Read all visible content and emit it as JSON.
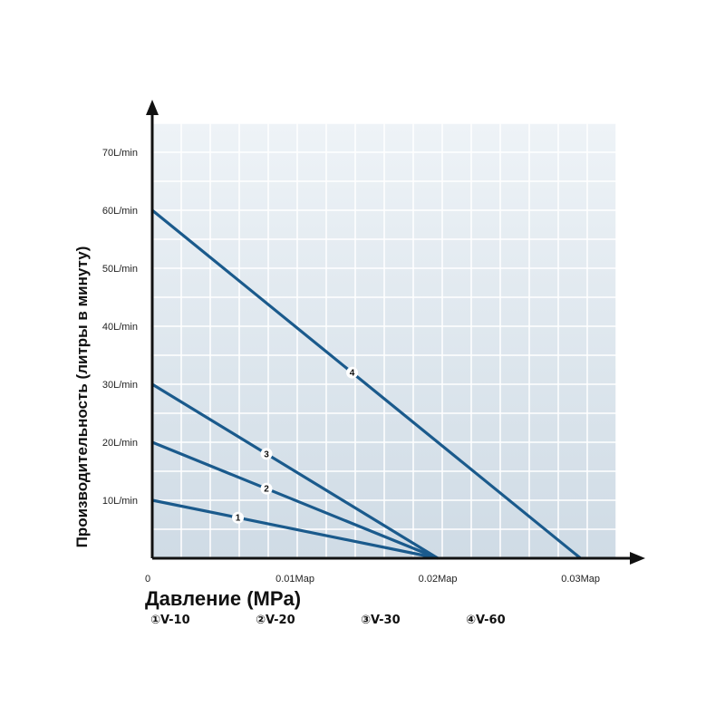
{
  "chart_data": {
    "type": "line",
    "xlabel": "Давление (MPa)",
    "ylabel": "Производительность (литры в минуту)",
    "xlim": [
      0,
      0.0325
    ],
    "ylim": [
      0,
      75
    ],
    "grid": true,
    "x_ticks": [
      {
        "value": 0,
        "label": "0"
      },
      {
        "value": 0.01,
        "label": "0.01Map"
      },
      {
        "value": 0.02,
        "label": "0.02Map"
      },
      {
        "value": 0.03,
        "label": "0.03Map"
      }
    ],
    "y_ticks": [
      {
        "value": 10,
        "label": "10L/min"
      },
      {
        "value": 20,
        "label": "20L/min"
      },
      {
        "value": 30,
        "label": "30L/min"
      },
      {
        "value": 40,
        "label": "40L/min"
      },
      {
        "value": 50,
        "label": "50L/min"
      },
      {
        "value": 60,
        "label": "60L/min"
      },
      {
        "value": 70,
        "label": "70L/min"
      }
    ],
    "series": [
      {
        "name": "V-10",
        "marker": "1",
        "x": [
          0,
          0.02
        ],
        "y": [
          10,
          0
        ],
        "label_at": 0.006
      },
      {
        "name": "V-20",
        "marker": "2",
        "x": [
          0,
          0.02
        ],
        "y": [
          20,
          0
        ],
        "label_at": 0.008
      },
      {
        "name": "V-30",
        "marker": "3",
        "x": [
          0,
          0.02
        ],
        "y": [
          30,
          0
        ],
        "label_at": 0.008
      },
      {
        "name": "V-60",
        "marker": "4",
        "x": [
          0,
          0.03
        ],
        "y": [
          60,
          0
        ],
        "label_at": 0.014
      }
    ],
    "legend": [
      {
        "symbol": "①",
        "name": "V-10"
      },
      {
        "symbol": "②",
        "name": "V-20"
      },
      {
        "symbol": "③",
        "name": "V-30"
      },
      {
        "symbol": "④",
        "name": "V-60"
      }
    ],
    "legend_position": "bottom"
  },
  "colors": {
    "line": "#1a5a8c",
    "grid": "#ffffff",
    "plot_bg_top": "#eef3f7",
    "plot_bg_bottom": "#cfdbe5",
    "axis": "#111111"
  }
}
